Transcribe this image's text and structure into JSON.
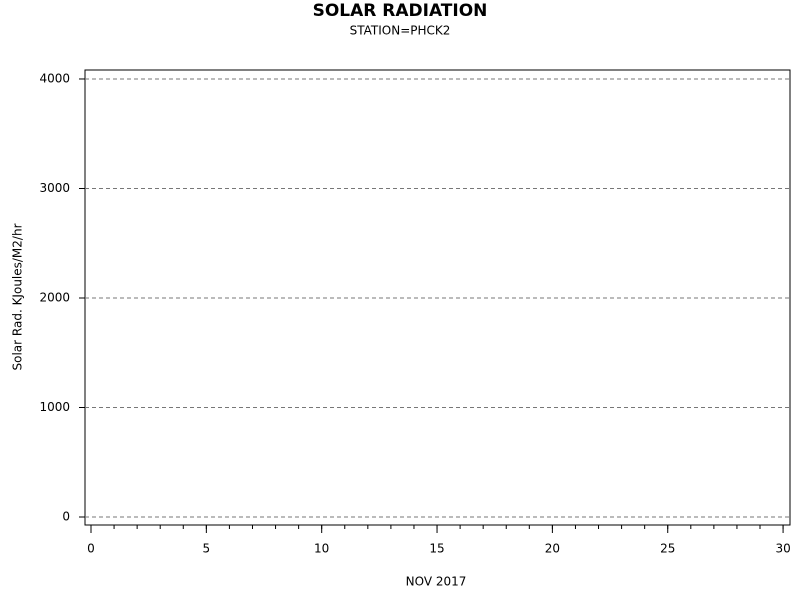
{
  "chart_data": {
    "type": "line",
    "title": "SOLAR RADIATION",
    "subtitle": "STATION=PHCK2",
    "x_label": "NOV 2017",
    "y_label": "Solar Rad. KJoules/M2/hr",
    "series": [],
    "xlim": [
      -0.26,
      30.3
    ],
    "xticks": [
      0,
      5,
      10,
      15,
      20,
      25,
      30
    ],
    "xminorticks": [
      0,
      1,
      2,
      3,
      4,
      5,
      6,
      7,
      8,
      9,
      10,
      11,
      12,
      13,
      14,
      15,
      16,
      17,
      18,
      19,
      20,
      21,
      22,
      23,
      24,
      25,
      26,
      27,
      28,
      29,
      30
    ],
    "ylim": [
      -73,
      4082
    ],
    "yticks": [
      0,
      1000,
      2000,
      3000,
      4000
    ],
    "grid": true
  }
}
